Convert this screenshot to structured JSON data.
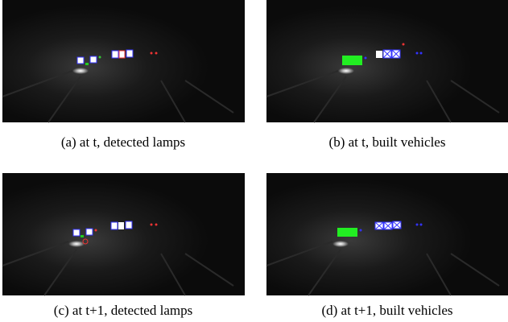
{
  "figures": [
    {
      "caption": "(a) at t, detected lamps"
    },
    {
      "caption": "(b) at t, built vehicles"
    },
    {
      "caption": "(c) at t+1, detected lamps"
    },
    {
      "caption": "(d) at t+1, built vehicles"
    }
  ]
}
